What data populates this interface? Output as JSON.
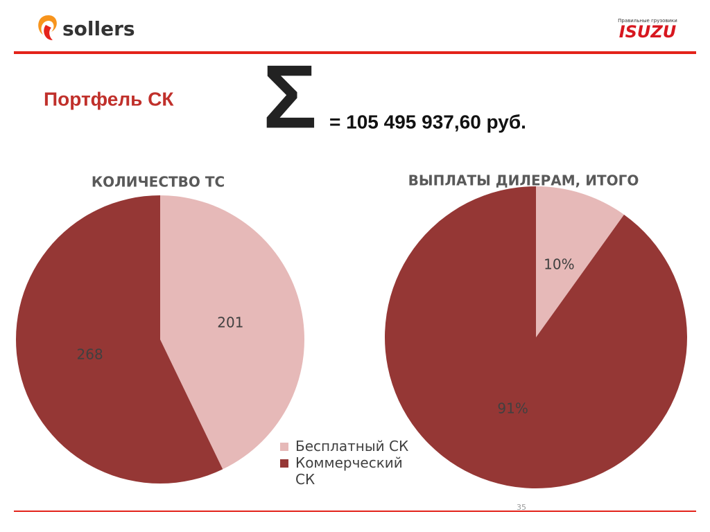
{
  "header": {
    "logo_left": "sollers",
    "logo_right_tagline": "Правильные грузовики",
    "logo_right": "ISUZU"
  },
  "title": "Портфель СК",
  "sum_symbol": "Σ",
  "sum_text": "= 105 495 937,60 руб.",
  "page_number": 35,
  "chart_data": [
    {
      "type": "pie",
      "title": "КОЛИЧЕСТВО ТС",
      "categories": [
        "Бесплатный СК",
        "Коммерческий СК"
      ],
      "values": [
        201,
        268
      ],
      "colors": [
        "#e6b9b8",
        "#953735"
      ],
      "legend": "bottom-right"
    },
    {
      "type": "pie",
      "title": "ВЫПЛАТЫ ДИЛЕРАМ, ИТОГО",
      "values": [
        10,
        91
      ],
      "value_labels": [
        "10%",
        "91%"
      ],
      "colors": [
        "#e6b9b8",
        "#953735"
      ]
    }
  ]
}
